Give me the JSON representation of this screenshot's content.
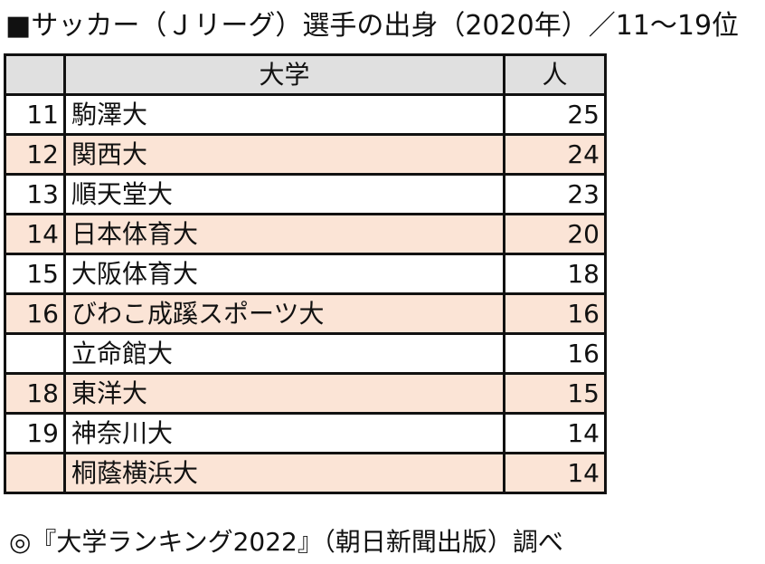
{
  "title": "■サッカー（Ｊリーグ）選手の出身（2020年）／11〜19位",
  "table": {
    "headers": {
      "rank": "",
      "university": "大学",
      "count": "人"
    },
    "rows": [
      {
        "rank": "11",
        "name": "駒澤大",
        "count": "25"
      },
      {
        "rank": "12",
        "name": "関西大",
        "count": "24"
      },
      {
        "rank": "13",
        "name": "順天堂大",
        "count": "23"
      },
      {
        "rank": "14",
        "name": "日本体育大",
        "count": "20"
      },
      {
        "rank": "15",
        "name": "大阪体育大",
        "count": "18"
      },
      {
        "rank": "16",
        "name": "びわこ成蹊スポーツ大",
        "count": "16"
      },
      {
        "rank": "",
        "name": "立命館大",
        "count": "16"
      },
      {
        "rank": "18",
        "name": "東洋大",
        "count": "15"
      },
      {
        "rank": "19",
        "name": "神奈川大",
        "count": "14"
      },
      {
        "rank": "",
        "name": "桐蔭横浜大",
        "count": "14"
      }
    ]
  },
  "footer": "◎『大学ランキング2022』（朝日新聞出版）調べ",
  "colors": {
    "header_bg": "#e0e0e0",
    "row_alt_bg": "#fbe4d6",
    "border": "#111111"
  }
}
